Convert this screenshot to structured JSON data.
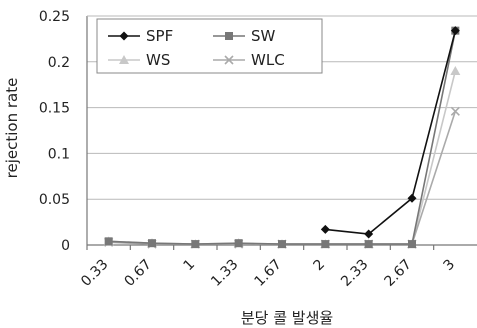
{
  "chart_data": {
    "type": "line",
    "xlabel": "분당 콜 발생율",
    "ylabel": "rejection rate",
    "categories": [
      "0.33",
      "0.67",
      "1",
      "1.33",
      "1.67",
      "2",
      "2.33",
      "2.67",
      "3"
    ],
    "yticks": [
      "0",
      "0.05",
      "0.1",
      "0.15",
      "0.2",
      "0.25"
    ],
    "ylim": [
      0,
      0.25
    ],
    "grid": true,
    "legend": "top-left",
    "series": [
      {
        "name": "SPF",
        "marker": "diamond",
        "color": "#111111",
        "values": [
          null,
          null,
          null,
          null,
          null,
          0.017,
          0.012,
          0.051,
          0.234
        ]
      },
      {
        "name": "SW",
        "marker": "square",
        "color": "#777777",
        "values": [
          0.004,
          0.002,
          0.001,
          0.002,
          0.001,
          0.001,
          0.001,
          0.001,
          0.234
        ]
      },
      {
        "name": "WS",
        "marker": "triangle",
        "color": "#c8c8c8",
        "values": [
          0.004,
          0.002,
          0.001,
          0.002,
          0.001,
          0.001,
          0.001,
          0.001,
          0.19
        ]
      },
      {
        "name": "WLC",
        "marker": "x",
        "color": "#aaaaaa",
        "values": [
          0.003,
          0.001,
          0.001,
          0.001,
          0.001,
          0.001,
          0.001,
          0.001,
          0.146
        ]
      }
    ]
  }
}
